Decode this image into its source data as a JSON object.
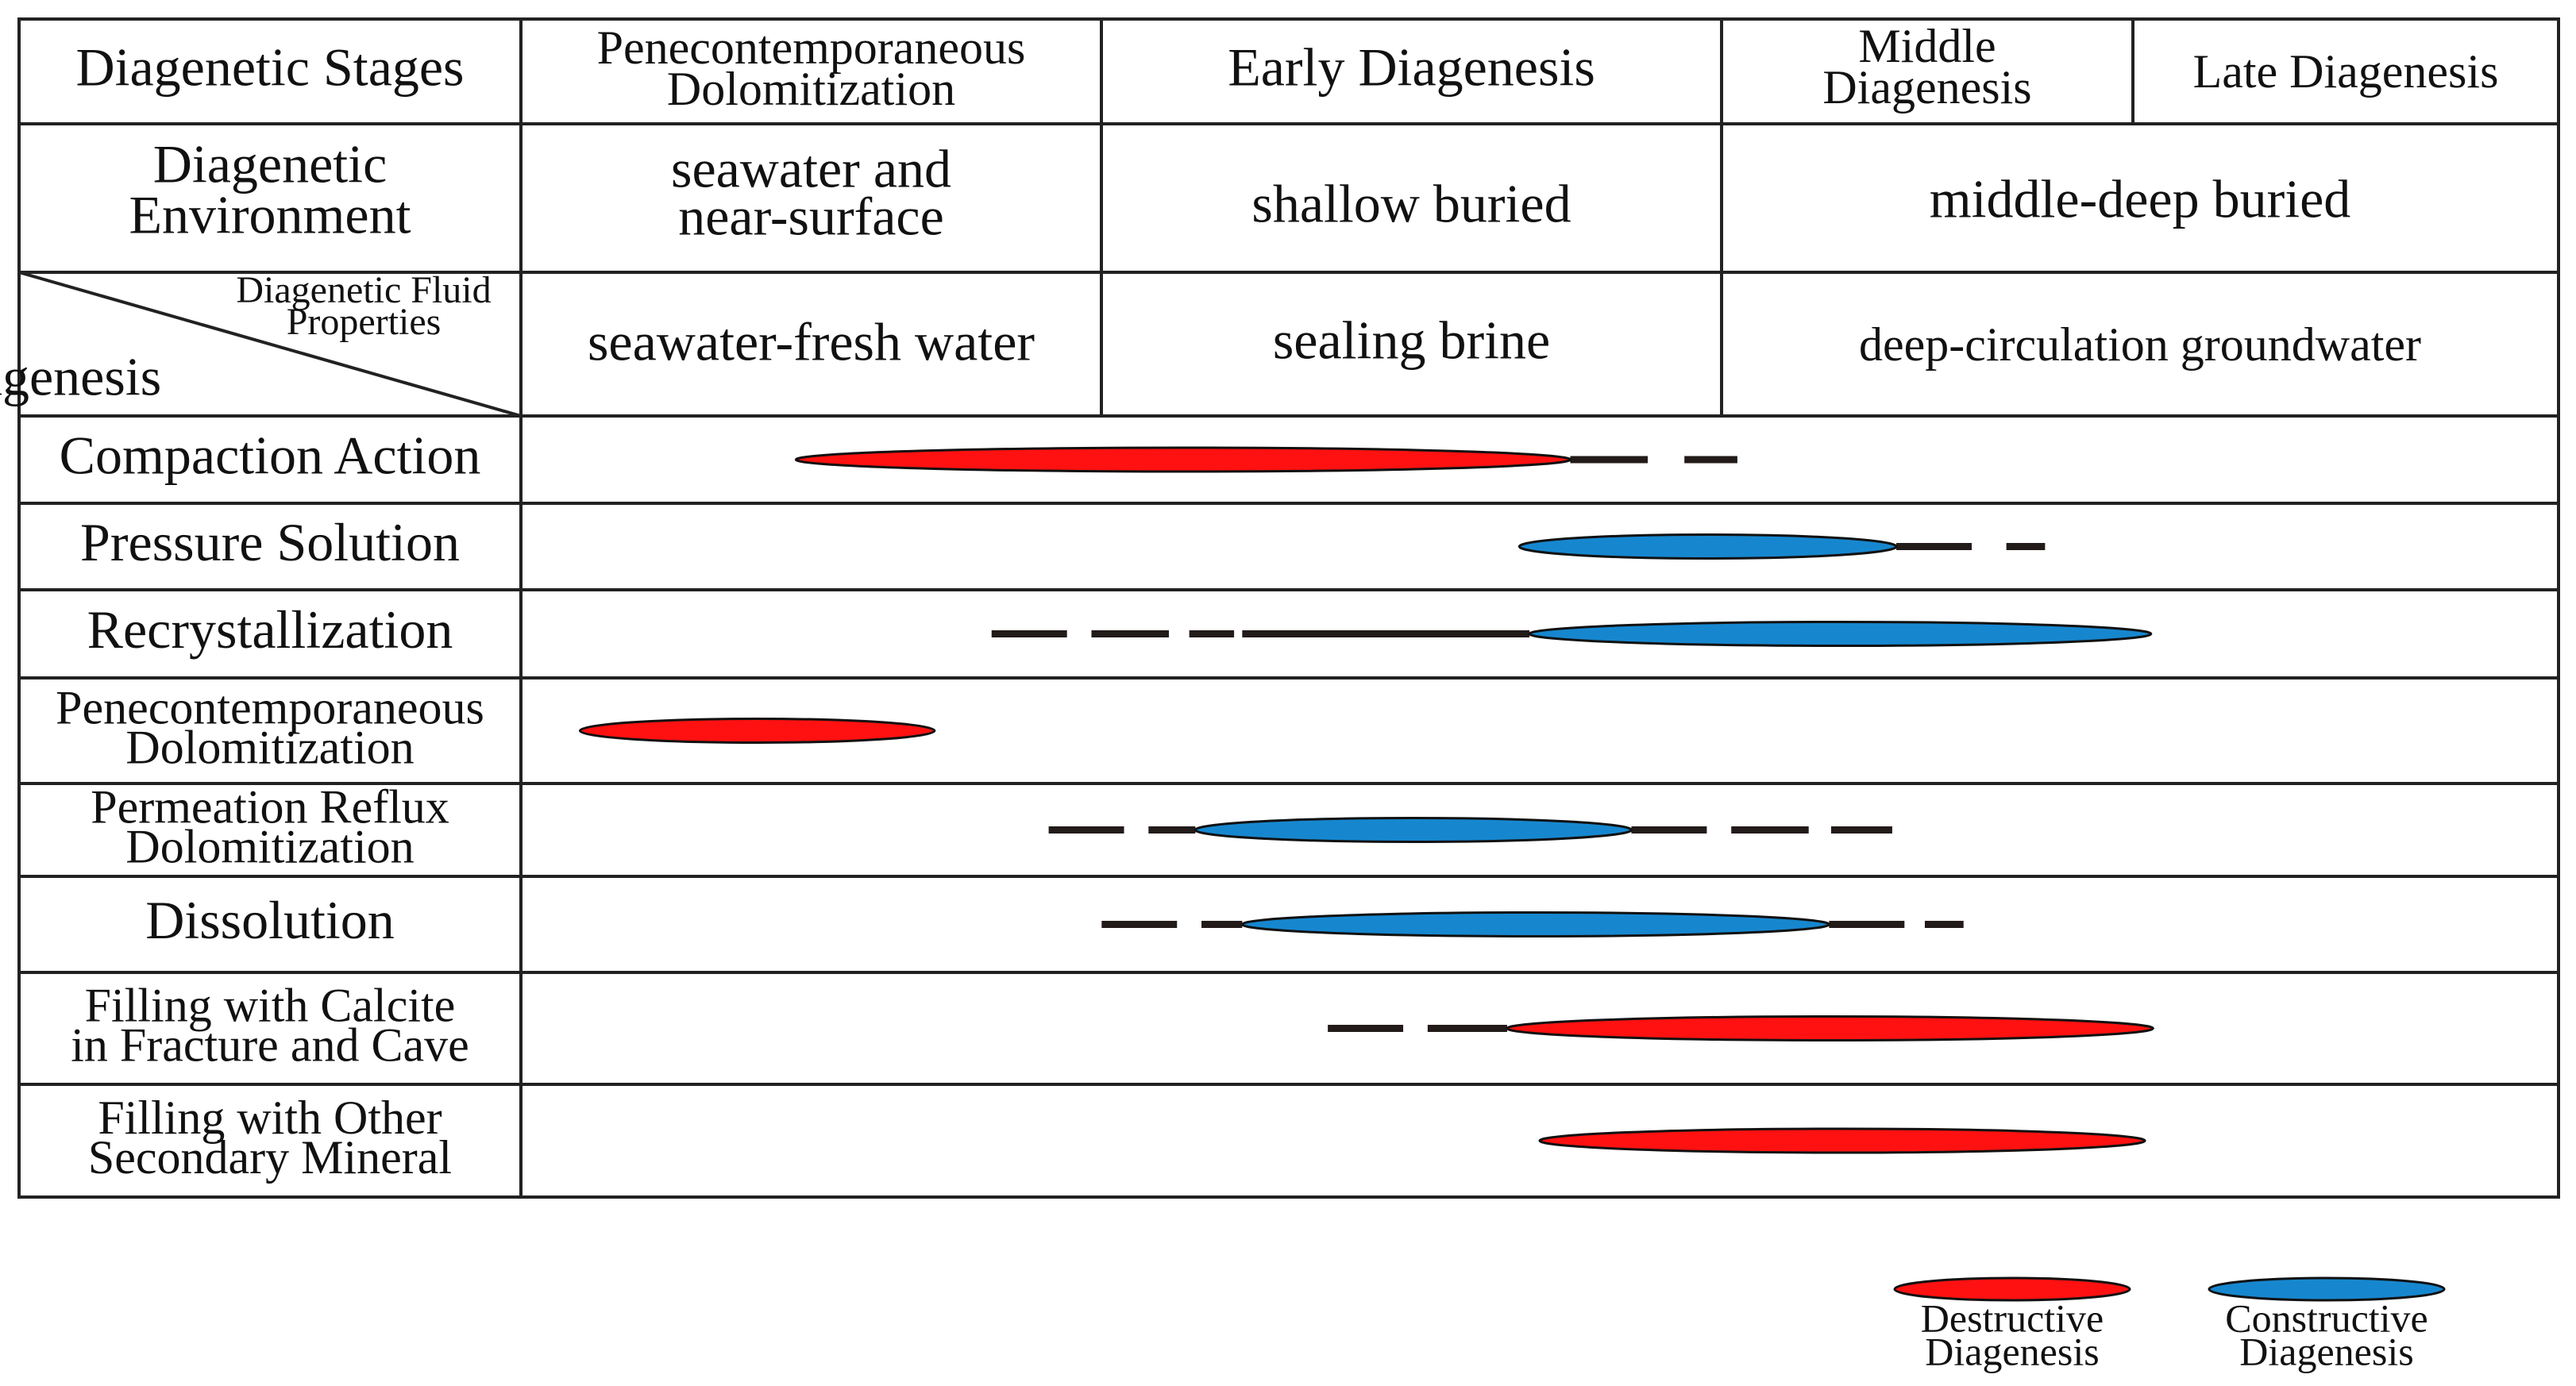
{
  "headers": {
    "stages_label": "Diagenetic Stages",
    "stage_penecontemporaneous": [
      "Penecontemporaneous",
      "Dolomitization"
    ],
    "stage_early": "Early Diagenesis",
    "stage_middle": [
      "Middle",
      "Diagenesis"
    ],
    "stage_late": "Late Diagenesis",
    "environment_label": [
      "Diagenetic",
      "Environment"
    ],
    "env_seawater": [
      "seawater and",
      "near-surface"
    ],
    "env_shallow": "shallow buried",
    "env_middle_deep": "middle-deep buried",
    "fluid_label": [
      "Diagenetic Fluid",
      "Properties"
    ],
    "diagenesis_label": "Diagenesis",
    "fluid_seawater": "seawater-fresh water",
    "fluid_brine": "sealing brine",
    "fluid_groundwater": "deep-circulation groundwater"
  },
  "processes": [
    {
      "name": [
        "Compaction Action"
      ],
      "type": "destructive",
      "main": [
        0.135,
        0.515
      ],
      "dashes": [
        [
          0.515,
          0.553
        ],
        [
          0.571,
          0.597
        ]
      ]
    },
    {
      "name": [
        "Pressure Solution"
      ],
      "type": "constructive",
      "main": [
        0.49,
        0.675
      ],
      "dashes": [
        [
          0.675,
          0.712
        ],
        [
          0.729,
          0.748
        ]
      ]
    },
    {
      "name": [
        "Recrystallization"
      ],
      "type": "constructive",
      "main": [
        0.495,
        0.8
      ],
      "dashes": [
        [
          0.231,
          0.268
        ],
        [
          0.28,
          0.318
        ],
        [
          0.328,
          0.35
        ],
        [
          0.354,
          0.495
        ]
      ]
    },
    {
      "name": [
        "Penecontemporaneous",
        "Dolomitization"
      ],
      "type": "destructive",
      "main": [
        0.029,
        0.203
      ],
      "dashes": []
    },
    {
      "name": [
        "Permeation Reflux",
        "Dolomitization"
      ],
      "type": "constructive",
      "main": [
        0.331,
        0.545
      ],
      "dashes": [
        [
          0.259,
          0.296
        ],
        [
          0.308,
          0.331
        ],
        [
          0.545,
          0.582
        ],
        [
          0.594,
          0.632
        ],
        [
          0.643,
          0.673
        ]
      ]
    },
    {
      "name": [
        "Dissolution"
      ],
      "type": "constructive",
      "main": [
        0.354,
        0.642
      ],
      "dashes": [
        [
          0.285,
          0.322
        ],
        [
          0.334,
          0.354
        ],
        [
          0.642,
          0.679
        ],
        [
          0.689,
          0.708
        ]
      ]
    },
    {
      "name": [
        "Filling with Calcite",
        "in Fracture and Cave"
      ],
      "type": "destructive",
      "main": [
        0.484,
        0.801
      ],
      "dashes": [
        [
          0.396,
          0.433
        ],
        [
          0.445,
          0.484
        ]
      ]
    },
    {
      "name": [
        "Filling with Other",
        "Secondary Mineral"
      ],
      "type": "destructive",
      "main": [
        0.5,
        0.797
      ],
      "dashes": []
    }
  ],
  "legend": {
    "destructive": [
      "Destructive",
      "Diagenesis"
    ],
    "constructive": [
      "Constructive",
      "Diagenesis"
    ]
  },
  "colors": {
    "destructive": "#ff1111",
    "constructive": "#1687cf",
    "dash": "#221b19"
  }
}
